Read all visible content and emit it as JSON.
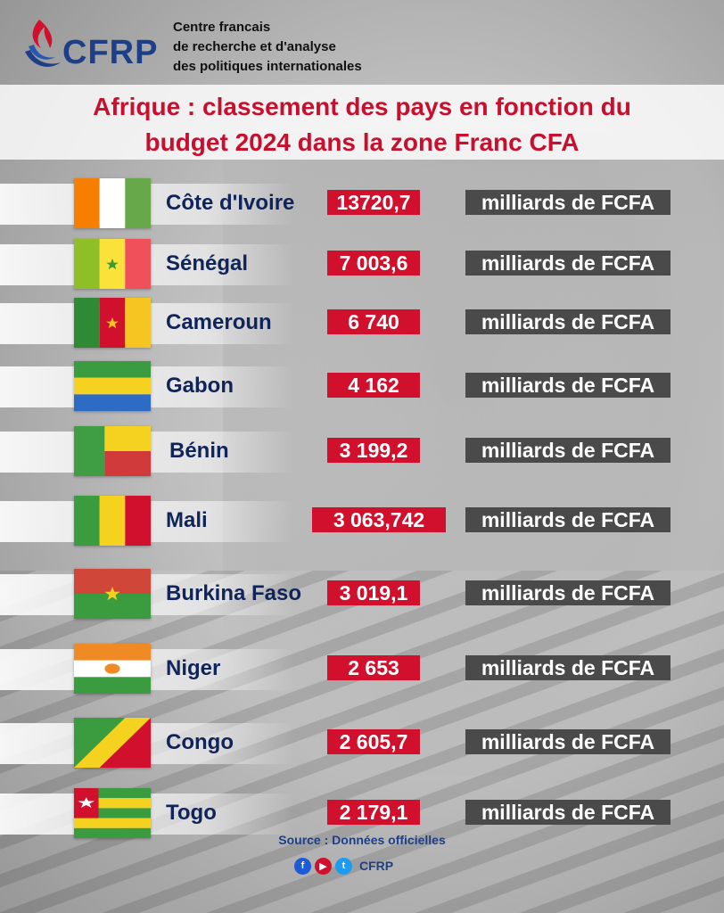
{
  "header": {
    "logo_text": "CFRP",
    "org_lines": [
      "Centre francais",
      "de recherche et d'analyse",
      "des politiques internationales"
    ]
  },
  "title": {
    "line1": "Afrique : classement des pays en fonction du",
    "line2": "budget 2024 dans la zone Franc CFA"
  },
  "rows": [
    {
      "country": "Côte d'Ivoire",
      "value": "13720,7",
      "unit": "milliards de FCFA",
      "flag": "cote-divoire-flag-icon"
    },
    {
      "country": "Sénégal",
      "value": "7 003,6",
      "unit": "milliards de FCFA",
      "flag": "senegal-flag-icon"
    },
    {
      "country": "Cameroun",
      "value": "6 740",
      "unit": "milliards de FCFA",
      "flag": "cameroon-flag-icon"
    },
    {
      "country": "Gabon",
      "value": "4 162",
      "unit": "milliards de FCFA",
      "flag": "gabon-flag-icon"
    },
    {
      "country": "Bénin",
      "value": "3 199,2",
      "unit": "milliards de FCFA",
      "flag": "benin-flag-icon"
    },
    {
      "country": "Mali",
      "value": "3 063,742",
      "unit": "milliards de FCFA",
      "flag": "mali-flag-icon"
    },
    {
      "country": "Burkina Faso",
      "value": "3 019,1",
      "unit": "milliards de FCFA",
      "flag": "burkina-faso-flag-icon"
    },
    {
      "country": "Niger",
      "value": "2 653",
      "unit": "milliards de FCFA",
      "flag": "niger-flag-icon"
    },
    {
      "country": "Congo",
      "value": "2 605,7",
      "unit": "milliards de FCFA",
      "flag": "congo-flag-icon"
    },
    {
      "country": "Togo",
      "value": "2 179,1",
      "unit": "milliards de FCFA",
      "flag": "togo-flag-icon"
    }
  ],
  "footer": {
    "source": "Source : Données officielles",
    "social_label": "CFRP",
    "icons": [
      "facebook-icon",
      "youtube-icon",
      "twitter-icon"
    ]
  },
  "colors": {
    "title_red": "#c8102e",
    "value_red": "#d0102c",
    "unit_gray": "#4a4a4a",
    "navy": "#10245a"
  }
}
